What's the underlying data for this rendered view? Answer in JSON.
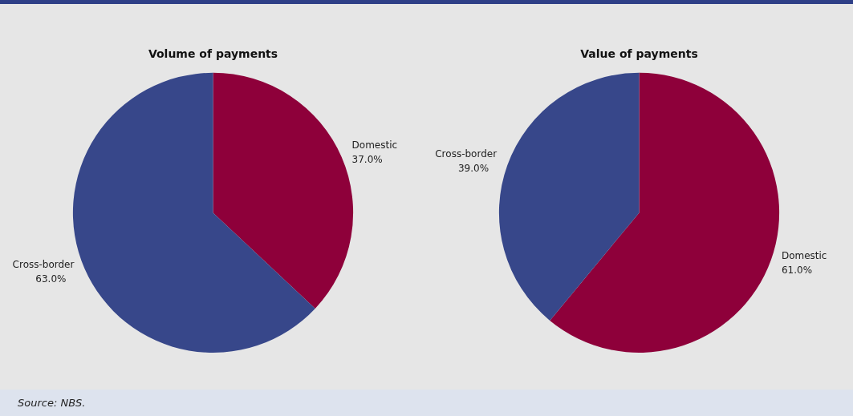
{
  "chart_data": [
    {
      "type": "pie",
      "title": "Volume of payments",
      "categories": [
        "Domestic",
        "Cross-border"
      ],
      "values": [
        37.0,
        63.0
      ],
      "value_labels": [
        "37.0%",
        "63.0%"
      ],
      "colors": [
        "#8e003a",
        "#37478a"
      ],
      "legend": false,
      "annotations": [
        "Source: NBS."
      ]
    },
    {
      "type": "pie",
      "title": "Value of payments",
      "categories": [
        "Domestic",
        "Cross-border"
      ],
      "values": [
        61.0,
        39.0
      ],
      "value_labels": [
        "61.0%",
        "39.0%"
      ],
      "colors": [
        "#8e003a",
        "#37478a"
      ],
      "legend": false
    }
  ]
}
